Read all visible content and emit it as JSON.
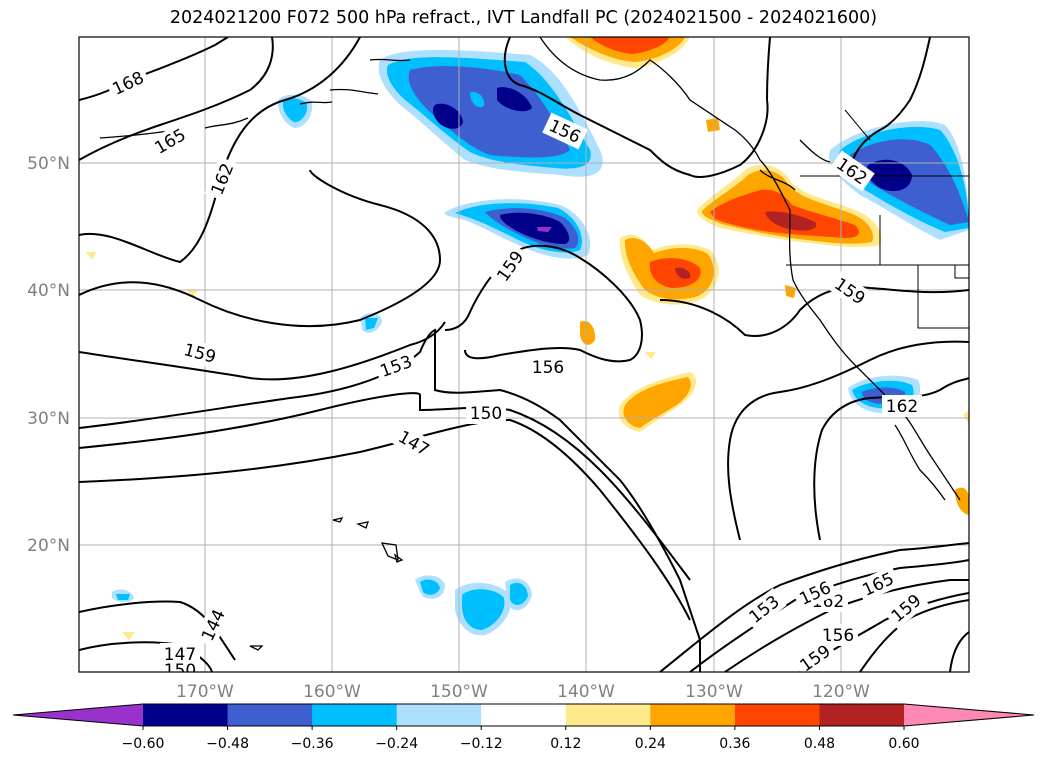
{
  "title": "2024021200 F072 500 hPa refract., IVT Landfall PC (2024021500 - 2024021600)",
  "lat_labels": [
    "50°N",
    "40°N",
    "30°N",
    "20°N"
  ],
  "lon_labels": [
    "170°W",
    "160°W",
    "150°W",
    "140°W",
    "130°W",
    "120°W"
  ],
  "colorbar": {
    "colors": [
      "#9932cc",
      "#00008b",
      "#3e5fcf",
      "#00bfff",
      "#addfff",
      "#ffffff",
      "#ffe98a",
      "#ffa500",
      "#ff4500",
      "#b22222",
      "#ff89b4"
    ],
    "tick_labels": [
      "−0.60",
      "−0.48",
      "−0.36",
      "−0.24",
      "−0.12",
      "0.12",
      "0.24",
      "0.36",
      "0.48",
      "0.60"
    ]
  },
  "contour_labels": [
    "168",
    "165",
    "162",
    "159",
    "153",
    "156",
    "150",
    "147",
    "144",
    "147",
    "150",
    "156",
    "159",
    "162",
    "162",
    "165",
    "159",
    "156",
    "159",
    "153",
    "156",
    "159",
    "162"
  ]
}
